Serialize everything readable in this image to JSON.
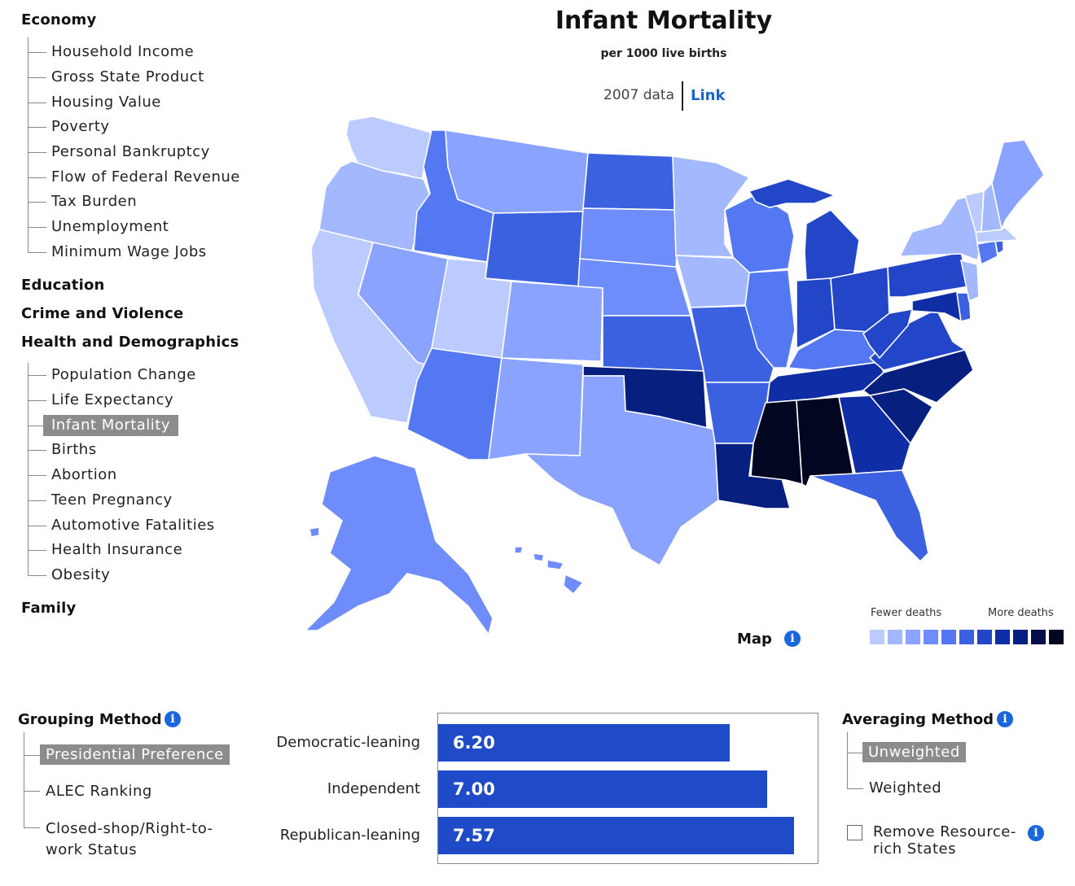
{
  "nav": {
    "economy": {
      "label": "Economy",
      "items": [
        "Household Income",
        "Gross State Product",
        "Housing Value",
        "Poverty",
        "Personal Bankruptcy",
        "Flow of Federal Revenue",
        "Tax Burden",
        "Unemployment",
        "Minimum Wage Jobs"
      ]
    },
    "education": "Education",
    "crime": "Crime and Violence",
    "health": {
      "label": "Health and Demographics",
      "items": [
        "Population Change",
        "Life Expectancy",
        "Infant Mortality",
        "Births",
        "Abortion",
        "Teen Pregnancy",
        "Automotive Fatalities",
        "Health Insurance",
        "Obesity"
      ],
      "selected": "Infant Mortality"
    },
    "family": "Family"
  },
  "header": {
    "title": "Infant Mortality",
    "subtitle": "per 1000 live births",
    "year": "2007 data",
    "link": "Link"
  },
  "map": {
    "label": "Map",
    "legend_low": "Fewer deaths",
    "legend_high": "More deaths",
    "legend_colors": [
      "#bccbff",
      "#a4b8ff",
      "#8aa3ff",
      "#6e8dfb",
      "#5478f2",
      "#3b61e0",
      "#2246c7",
      "#0f2ea6",
      "#071f7e",
      "#040f4a",
      "#020621"
    ]
  },
  "grouping": {
    "title": "Grouping Method",
    "options": [
      "Presidential Preference",
      "ALEC Ranking",
      "Closed-shop/Right-to-work Status"
    ],
    "selected": "Presidential Preference"
  },
  "chart_data": {
    "type": "bar",
    "categories": [
      "Democratic-leaning",
      "Independent",
      "Republican-leaning"
    ],
    "values": [
      6.2,
      7.0,
      7.57
    ],
    "value_labels": [
      "6.20",
      "7.00",
      "7.57"
    ],
    "xlim": [
      0,
      8.0
    ],
    "title": "",
    "xlabel": "",
    "ylabel": ""
  },
  "averaging": {
    "title": "Averaging Method",
    "options": [
      "Unweighted",
      "Weighted"
    ],
    "selected": "Unweighted",
    "checkbox_label": "Remove Resource-rich States",
    "checkbox_checked": false
  }
}
